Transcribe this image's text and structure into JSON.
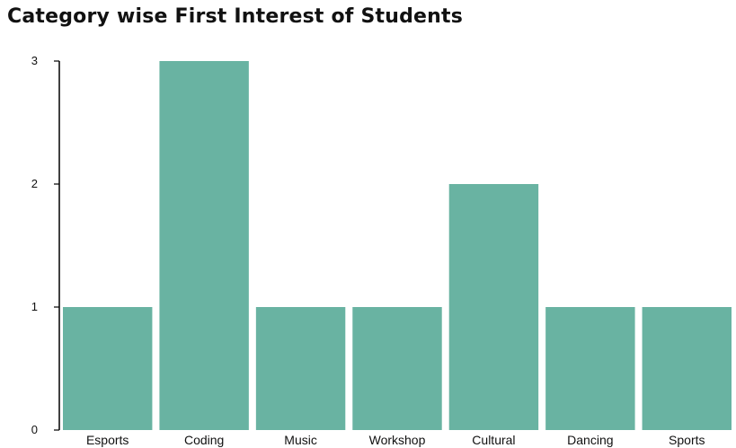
{
  "chart_data": {
    "type": "bar",
    "title": "Category wise First Interest of Students",
    "categories": [
      "Esports",
      "Coding",
      "Music",
      "Workshop",
      "Cultural",
      "Dancing",
      "Sports"
    ],
    "values": [
      1,
      3,
      1,
      1,
      2,
      1,
      1
    ],
    "ylim": [
      0,
      3
    ],
    "yticks": [
      0,
      1,
      2,
      3
    ],
    "xlabel": "",
    "ylabel": "",
    "grid": false,
    "colors": {
      "bar": "#69b3a2",
      "axis": "#000000"
    }
  }
}
